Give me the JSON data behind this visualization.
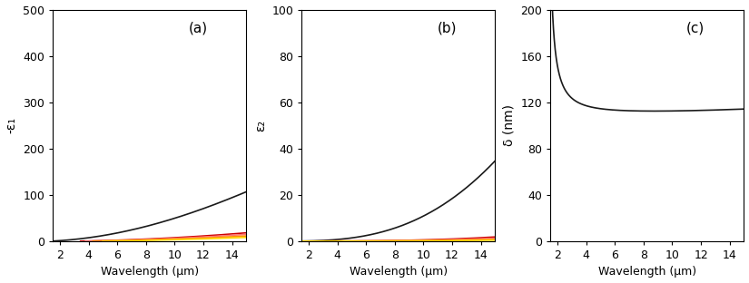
{
  "wavelength_min": 1.5,
  "wavelength_max": 15.0,
  "n_points": 1000,
  "panel_labels": [
    "(a)",
    "(b)",
    "(c)"
  ],
  "xlabel": "Wavelength (μm)",
  "ylabel_a": "-ε₁",
  "ylabel_b": "ε₂",
  "ylabel_c": "δ (nm)",
  "ylim_a": [
    0,
    500
  ],
  "ylim_b": [
    0,
    100
  ],
  "ylim_c": [
    0,
    200
  ],
  "yticks_a": [
    0,
    100,
    200,
    300,
    400,
    500
  ],
  "yticks_b": [
    0,
    20,
    40,
    60,
    80,
    100
  ],
  "yticks_c": [
    0,
    40,
    80,
    120,
    160,
    200
  ],
  "xticks": [
    2,
    4,
    6,
    8,
    10,
    12,
    14
  ],
  "drude_params": [
    {
      "wp": 1370000000000000.0,
      "gamma": 40500000000000.0,
      "color": "#1a1a1a"
    },
    {
      "wp": 550000000000000.0,
      "gamma": 12000000000000.0,
      "color": "#cc0000"
    },
    {
      "wp": 500000000000000.0,
      "gamma": 10000000000000.0,
      "color": "#ff7777"
    },
    {
      "wp": 440000000000000.0,
      "gamma": 8000000000000.0,
      "color": "#ff8c00"
    },
    {
      "wp": 380000000000000.0,
      "gamma": 6000000000000.0,
      "color": "#ffd700"
    }
  ]
}
